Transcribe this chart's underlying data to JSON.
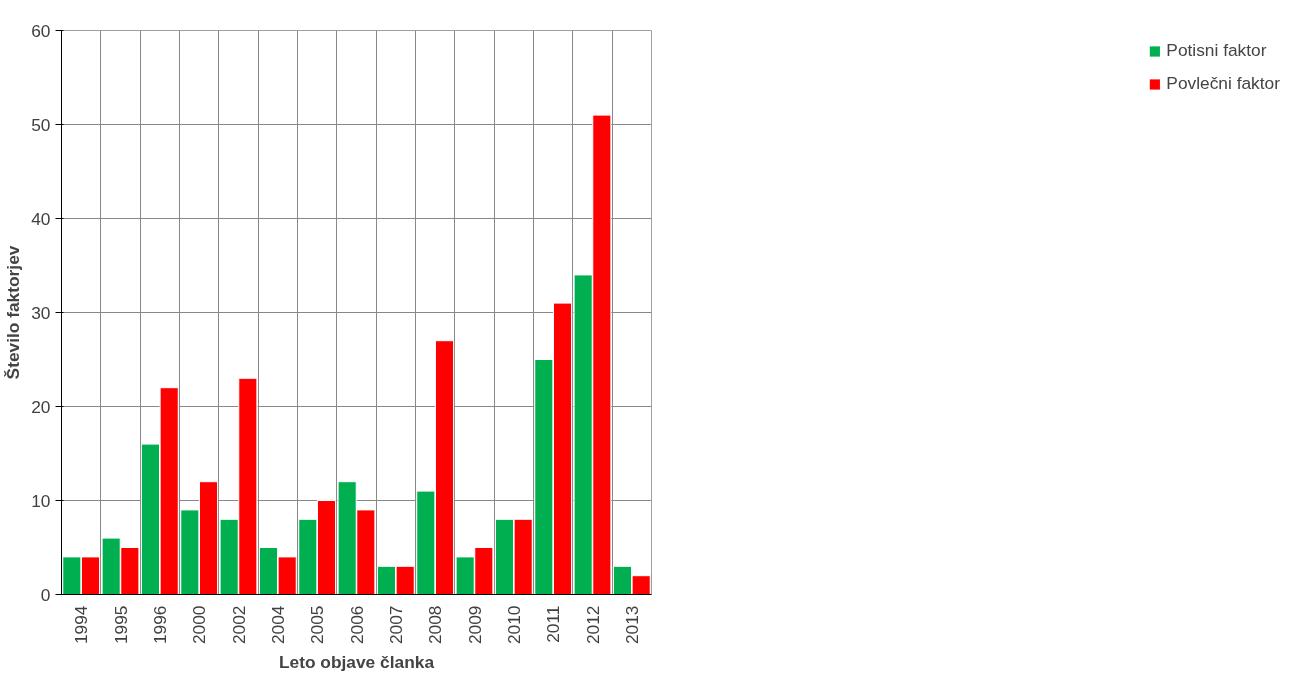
{
  "chart_data": {
    "type": "bar",
    "xlabel": "Leto objave članka",
    "ylabel": "Število faktorjev",
    "categories": [
      "1994",
      "1995",
      "1996",
      "2000",
      "2002",
      "2004",
      "2005",
      "2006",
      "2007",
      "2008",
      "2009",
      "2010",
      "2011",
      "2012",
      "2013"
    ],
    "series": [
      {
        "name": "Potisni faktor",
        "color": "#00b050",
        "values": [
          4,
          6,
          16,
          9,
          8,
          5,
          8,
          12,
          3,
          11,
          4,
          8,
          25,
          34,
          3
        ]
      },
      {
        "name": "Povlečni faktor",
        "color": "#ff0000",
        "values": [
          4,
          5,
          22,
          12,
          23,
          4,
          10,
          9,
          3,
          27,
          5,
          8,
          31,
          51,
          2
        ]
      }
    ],
    "ylim": [
      0,
      60
    ],
    "yticks": [
      0,
      10,
      20,
      30,
      40,
      50,
      60
    ],
    "grid": true,
    "legend": "right"
  }
}
